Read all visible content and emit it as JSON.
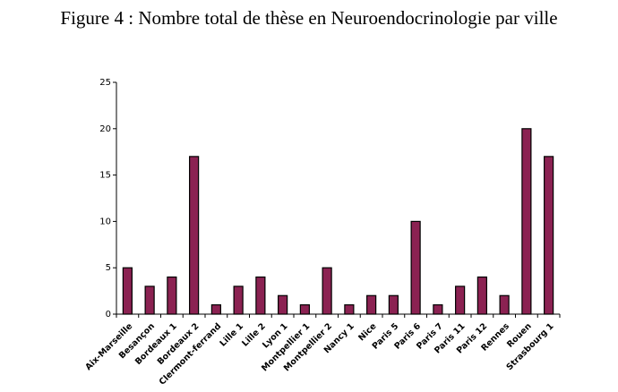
{
  "chart_data": {
    "type": "bar",
    "title": "Figure 4 : Nombre total de thèse en Neuroendocrinologie par ville",
    "categories": [
      "Aix-Marseille",
      "Besançon",
      "Bordeaux 1",
      "Bordeaux 2",
      "Clermont-ferrand",
      "Lille 1",
      "Lille 2",
      "Lyon 1",
      "Montpellier 1",
      "Montpellier 2",
      "Nancy 1",
      "Nice",
      "Paris 5",
      "Paris 6",
      "Paris 7",
      "Paris 11",
      "Paris 12",
      "Rennes",
      "Rouen",
      "Strasbourg 1"
    ],
    "values": [
      5,
      3,
      4,
      17,
      1,
      3,
      4,
      2,
      1,
      5,
      1,
      2,
      2,
      10,
      1,
      3,
      4,
      2,
      20,
      17
    ],
    "color": "#8b2252",
    "ylim": [
      0,
      25
    ],
    "yticks": [
      0,
      5,
      10,
      15,
      20,
      25
    ],
    "grid": false
  }
}
